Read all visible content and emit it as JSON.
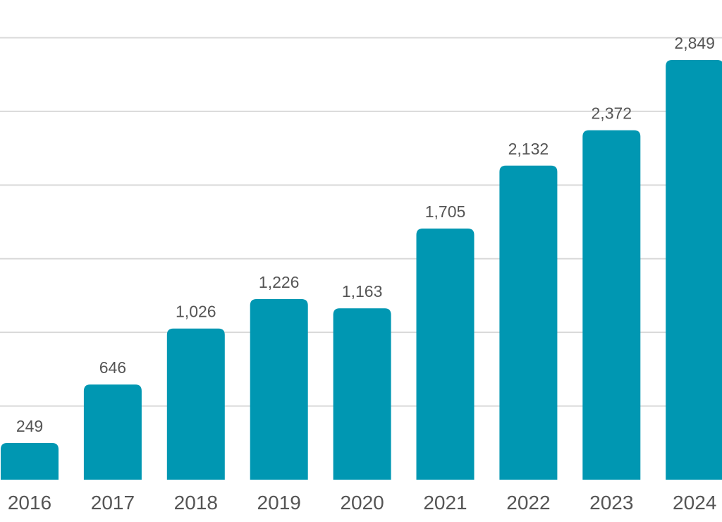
{
  "chart_data": {
    "type": "bar",
    "title": "",
    "xlabel": "",
    "ylabel": "",
    "categories": [
      "2016",
      "2017",
      "2018",
      "2019",
      "2020",
      "2021",
      "2022",
      "2023",
      "2024"
    ],
    "values": [
      249,
      646,
      1026,
      1226,
      1163,
      1705,
      2132,
      2372,
      2849
    ],
    "value_labels": [
      "249",
      "646",
      "1,026",
      "1,226",
      "1,163",
      "1,705",
      "2,132",
      "2,372",
      "2,849"
    ],
    "ylim": [
      0,
      3000
    ],
    "gridlines": [
      0,
      500,
      1000,
      1500,
      2000,
      2500,
      3000
    ],
    "grid": true,
    "y_tick_labels_shown": false,
    "colors": {
      "bar": "#0097b2",
      "grid": "#d9d9d9",
      "text": "#555555"
    }
  }
}
